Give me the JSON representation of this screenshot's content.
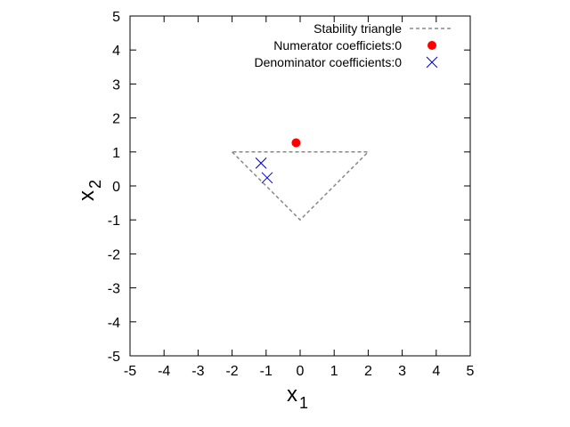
{
  "chart_data": {
    "type": "scatter",
    "title": "",
    "xlabel": "x",
    "xlabel_sub": "1",
    "ylabel": "x",
    "ylabel_sub": "2",
    "xlim": [
      -5,
      5
    ],
    "ylim": [
      -5,
      5
    ],
    "xticks": [
      -5,
      -4,
      -3,
      -2,
      -1,
      0,
      1,
      2,
      3,
      4,
      5
    ],
    "yticks": [
      -5,
      -4,
      -3,
      -2,
      -1,
      0,
      1,
      2,
      3,
      4,
      5
    ],
    "grid": false,
    "legend_position": "top-right",
    "series": [
      {
        "name": "Stability triangle",
        "kind": "dashed-line",
        "color": "#888888",
        "x": [
          -2,
          0,
          2,
          -2
        ],
        "y": [
          1,
          -1,
          1,
          1
        ]
      },
      {
        "name": "Numerator coefficiets:0",
        "kind": "filled-circle",
        "color": "#ff0000",
        "x": [
          -0.12
        ],
        "y": [
          1.27
        ]
      },
      {
        "name": "Denominator coefficients:0",
        "kind": "cross",
        "color": "#0000cc",
        "x": [
          -1.15,
          -0.97
        ],
        "y": [
          0.67,
          0.24
        ]
      }
    ]
  }
}
